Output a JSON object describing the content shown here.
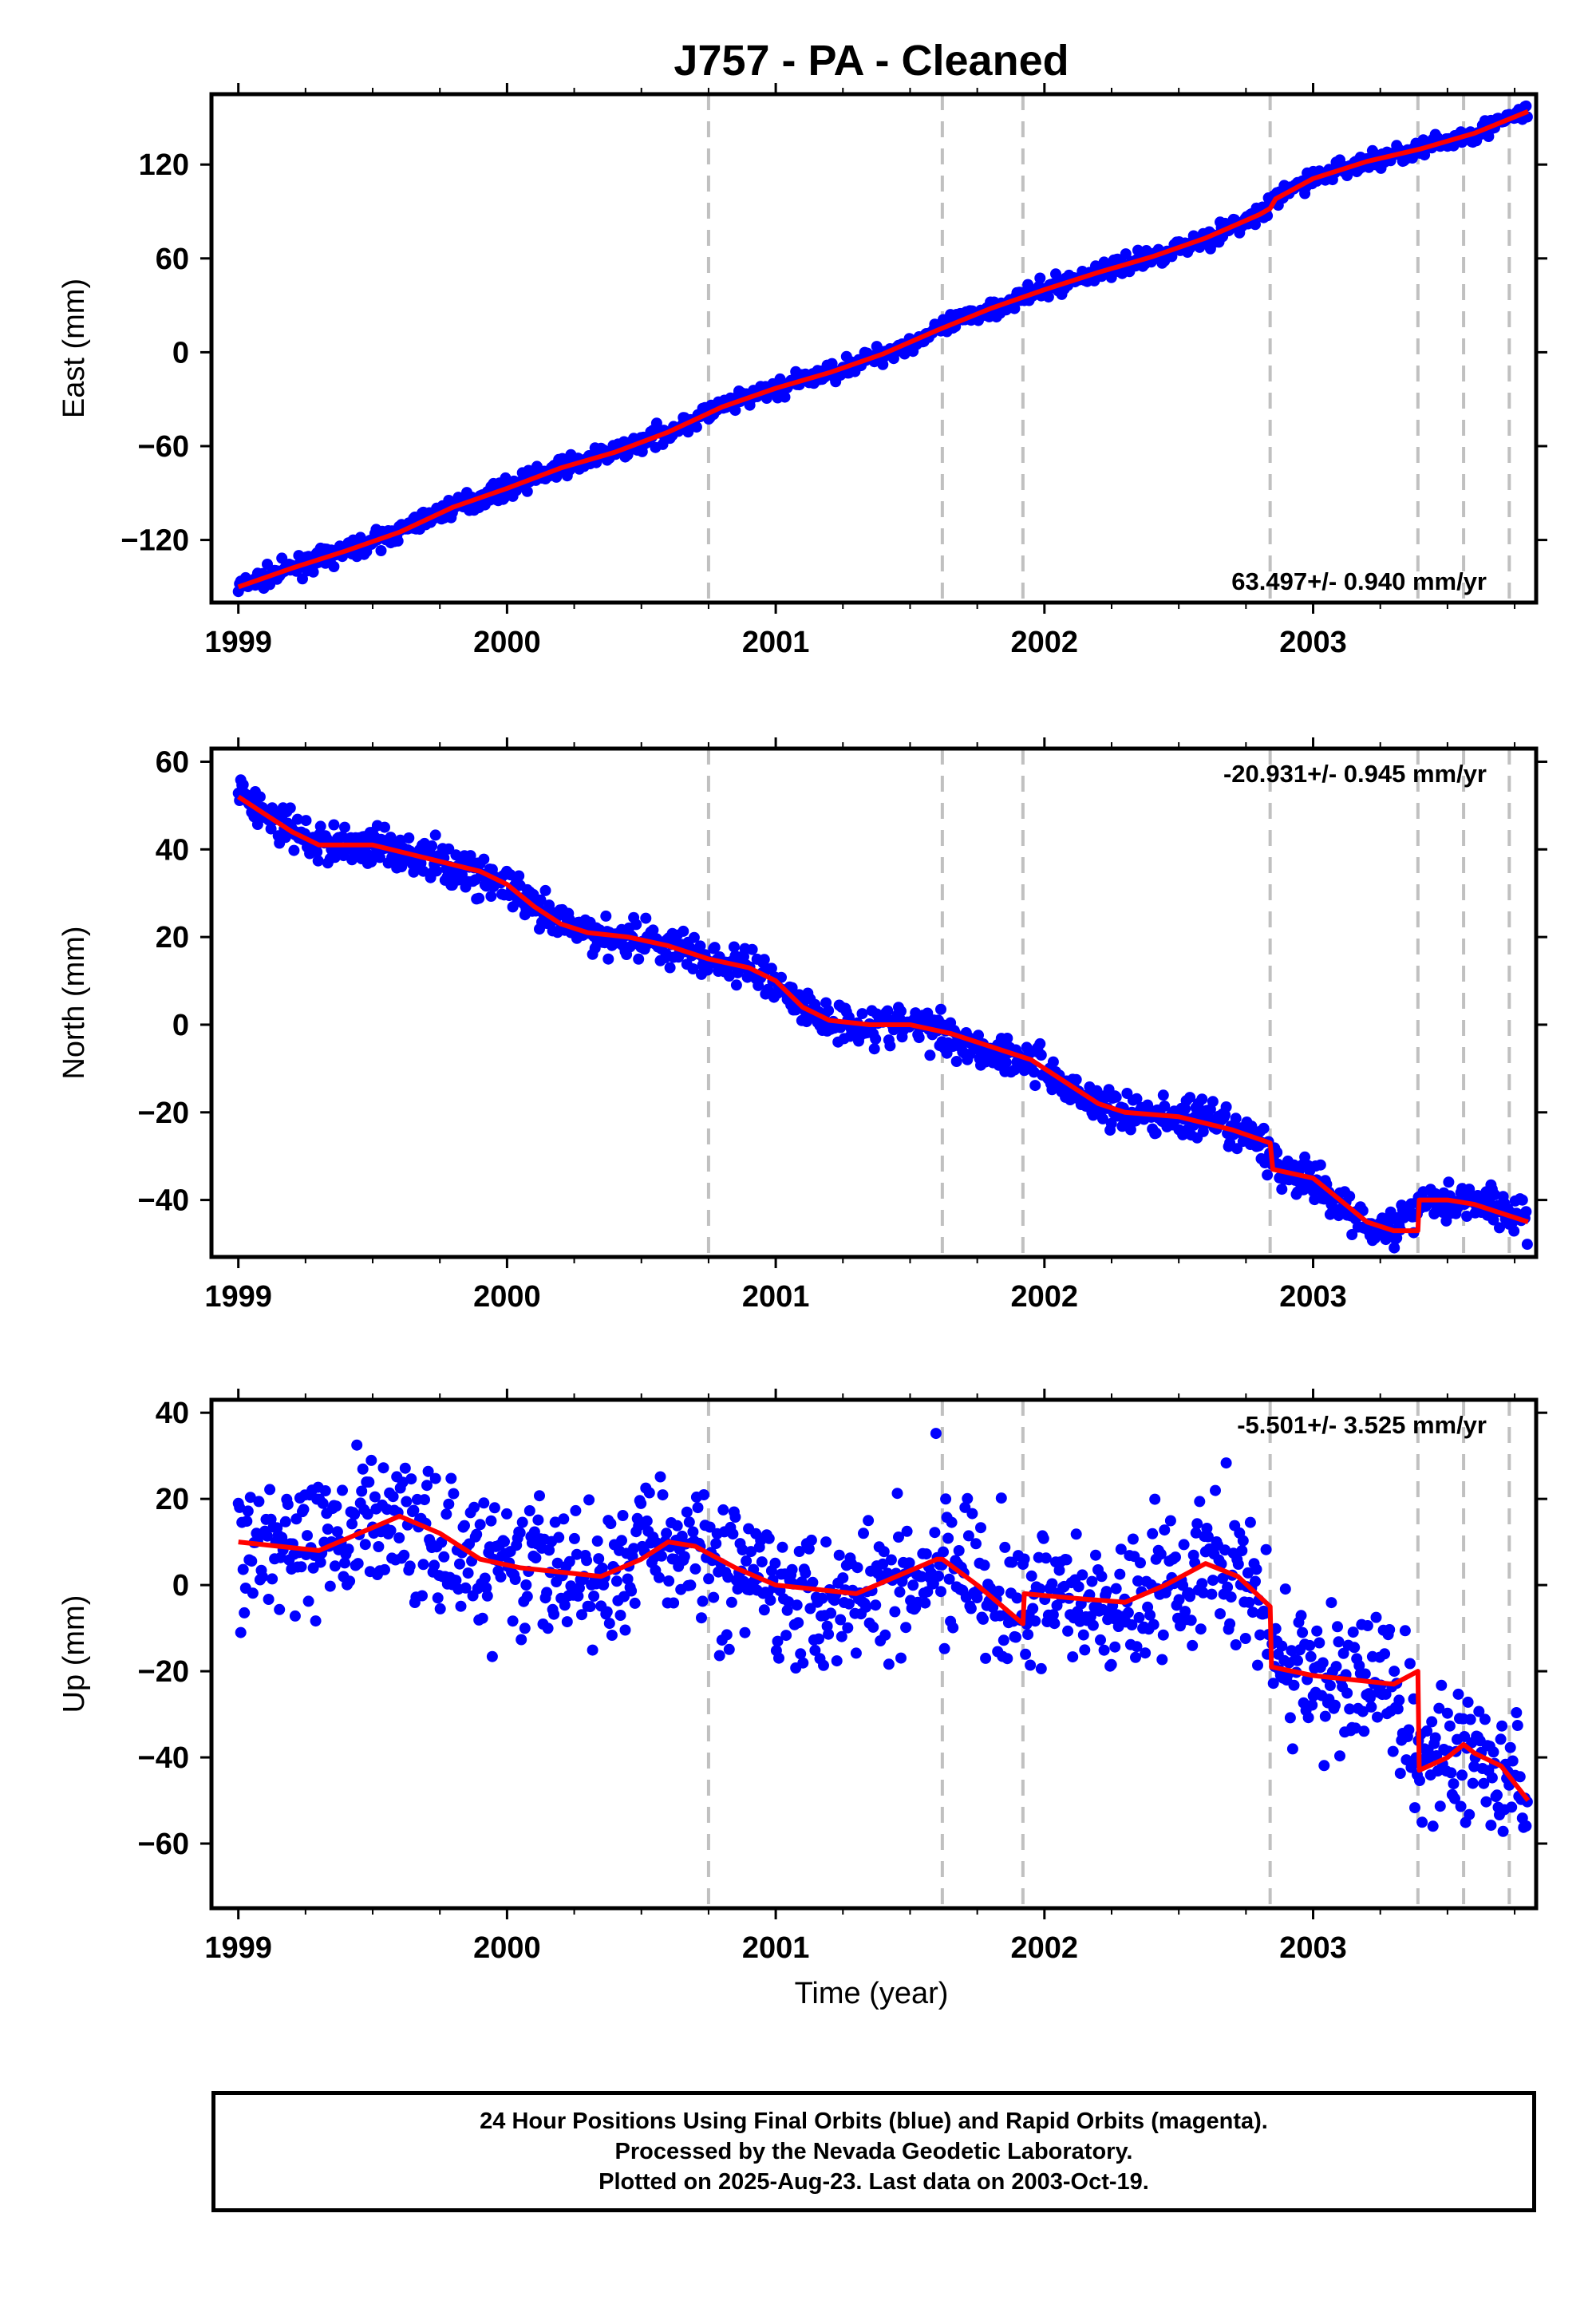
{
  "title": "J757  - PA - Cleaned",
  "xlabel": "Time (year)",
  "caption": [
    "24 Hour Positions Using Final Orbits (blue) and Rapid Orbits (magenta).",
    "Processed by the Nevada Geodetic Laboratory.",
    "Plotted on 2025-Aug-23. Last data on 2003-Oct-19."
  ],
  "colors": {
    "points": "#0000ff",
    "model": "#ff0000",
    "steps": "#c0c0c0",
    "axes": "#000000"
  },
  "chart_data": [
    {
      "type": "scatter",
      "ylabel": "East (mm)",
      "rate_label": "63.497+/- 0.940 mm/yr",
      "rate_position": "bottom-right",
      "xlim": [
        1998.9,
        2003.83
      ],
      "ylim": [
        -160,
        165
      ],
      "xticks": [
        1999,
        2000,
        2001,
        2002,
        2003
      ],
      "yticks": [
        -120,
        -60,
        0,
        60,
        120
      ],
      "step_dates": [
        2000.75,
        2001.62,
        2001.92,
        2002.84,
        2003.39,
        2003.56,
        2003.73
      ],
      "model": {
        "x": [
          1999.0,
          1999.2,
          1999.4,
          1999.6,
          1999.8,
          2000.0,
          2000.2,
          2000.4,
          2000.6,
          2000.8,
          2001.0,
          2001.2,
          2001.4,
          2001.6,
          2001.8,
          2002.0,
          2002.2,
          2002.4,
          2002.6,
          2002.8,
          2002.84,
          2002.86,
          2003.0,
          2003.2,
          2003.4,
          2003.6,
          2003.8
        ],
        "y": [
          -150,
          -138,
          -127,
          -115,
          -99,
          -87,
          -74,
          -64,
          -51,
          -35,
          -23,
          -13,
          -1,
          14,
          28,
          40,
          51,
          61,
          73,
          88,
          92,
          98,
          111,
          122,
          130,
          140,
          154
        ]
      },
      "points": {
        "x": [
          1999.0,
          1999.1,
          1999.2,
          1999.3,
          1999.4,
          1999.5,
          1999.6,
          1999.7,
          1999.8,
          1999.9,
          2000.0,
          2000.1,
          2000.2,
          2000.3,
          2000.4,
          2000.5,
          2000.6,
          2000.7,
          2000.8,
          2000.9,
          2001.0,
          2001.1,
          2001.2,
          2001.3,
          2001.4,
          2001.5,
          2001.6,
          2001.7,
          2001.8,
          2001.9,
          2002.0,
          2002.1,
          2002.2,
          2002.3,
          2002.4,
          2002.5,
          2002.6,
          2002.7,
          2002.8,
          2002.9,
          2003.0,
          2003.1,
          2003.2,
          2003.3,
          2003.4,
          2003.5,
          2003.6,
          2003.7,
          2003.8
        ],
        "y": [
          -150,
          -144,
          -138,
          -133,
          -127,
          -121,
          -115,
          -106,
          -99,
          -93,
          -87,
          -80,
          -74,
          -69,
          -64,
          -57,
          -51,
          -43,
          -35,
          -29,
          -23,
          -18,
          -13,
          -7,
          -1,
          6,
          14,
          21,
          28,
          34,
          40,
          46,
          51,
          56,
          61,
          67,
          73,
          80,
          88,
          103,
          111,
          117,
          122,
          126,
          130,
          135,
          140,
          147,
          154
        ]
      }
    },
    {
      "type": "scatter",
      "ylabel": "North (mm)",
      "rate_label": "-20.931+/- 0.945 mm/yr",
      "rate_position": "top-right",
      "xlim": [
        1998.9,
        2003.83
      ],
      "ylim": [
        -53,
        63
      ],
      "xticks": [
        1999,
        2000,
        2001,
        2002,
        2003
      ],
      "yticks": [
        -40,
        -20,
        0,
        20,
        40,
        60
      ],
      "step_dates": [
        2000.75,
        2001.62,
        2001.92,
        2002.84,
        2003.39,
        2003.56,
        2003.73
      ],
      "model": {
        "x": [
          1999.0,
          1999.1,
          1999.2,
          1999.3,
          1999.5,
          1999.7,
          1999.9,
          2000.0,
          2000.1,
          2000.2,
          2000.3,
          2000.45,
          2000.6,
          2000.75,
          2000.9,
          2001.0,
          2001.1,
          2001.2,
          2001.35,
          2001.5,
          2001.65,
          2001.8,
          2001.95,
          2002.1,
          2002.2,
          2002.3,
          2002.5,
          2002.7,
          2002.84,
          2002.85,
          2003.0,
          2003.1,
          2003.2,
          2003.3,
          2003.39,
          2003.395,
          2003.5,
          2003.6,
          2003.7,
          2003.8
        ],
        "y": [
          52,
          48,
          44,
          41,
          41,
          38,
          35,
          32,
          27,
          23,
          21,
          20,
          18,
          15,
          13,
          10,
          4,
          1,
          0,
          0,
          -2,
          -5,
          -8,
          -14,
          -18,
          -20,
          -21,
          -24,
          -27,
          -33,
          -35,
          -40,
          -45,
          -47,
          -47,
          -40,
          -40,
          -41,
          -43,
          -45
        ]
      },
      "points": {
        "x": [
          1999.0,
          1999.1,
          1999.2,
          1999.3,
          1999.4,
          1999.5,
          1999.6,
          1999.7,
          1999.8,
          1999.9,
          2000.0,
          2000.1,
          2000.2,
          2000.3,
          2000.4,
          2000.5,
          2000.6,
          2000.7,
          2000.8,
          2000.9,
          2001.0,
          2001.1,
          2001.2,
          2001.3,
          2001.4,
          2001.5,
          2001.6,
          2001.7,
          2001.8,
          2001.9,
          2002.0,
          2002.1,
          2002.2,
          2002.3,
          2002.4,
          2002.5,
          2002.6,
          2002.7,
          2002.8,
          2002.9,
          2003.0,
          2003.1,
          2003.2,
          2003.3,
          2003.4,
          2003.5,
          2003.6,
          2003.7,
          2003.8
        ],
        "y": [
          53,
          48,
          44,
          41,
          41,
          41,
          40,
          38,
          36,
          34,
          32,
          26,
          23,
          21,
          20,
          20,
          18,
          16,
          14,
          13,
          10,
          4,
          1,
          0,
          0,
          0,
          -1,
          -4,
          -6,
          -7,
          -10,
          -15,
          -18,
          -20,
          -21,
          -21,
          -22,
          -24,
          -27,
          -34,
          -36,
          -41,
          -45,
          -47,
          -40,
          -40,
          -40,
          -42,
          -45
        ]
      }
    },
    {
      "type": "scatter",
      "ylabel": "Up (mm)",
      "rate_label": "-5.501+/- 3.525 mm/yr",
      "rate_position": "top-right",
      "xlim": [
        1998.9,
        2003.83
      ],
      "ylim": [
        -75,
        43
      ],
      "xticks": [
        1999,
        2000,
        2001,
        2002,
        2003
      ],
      "yticks": [
        -60,
        -40,
        -20,
        0,
        20,
        40
      ],
      "step_dates": [
        2000.75,
        2001.62,
        2001.92,
        2002.84,
        2003.39,
        2003.56,
        2003.73
      ],
      "model": {
        "x": [
          1999.0,
          1999.15,
          1999.3,
          1999.45,
          1999.6,
          1999.75,
          1999.9,
          2000.05,
          2000.2,
          2000.35,
          2000.5,
          2000.6,
          2000.7,
          2000.85,
          2001.0,
          2001.15,
          2001.3,
          2001.45,
          2001.6,
          2001.62,
          2001.75,
          2001.92,
          2001.925,
          2002.1,
          2002.3,
          2002.45,
          2002.6,
          2002.72,
          2002.84,
          2002.845,
          2003.0,
          2003.15,
          2003.3,
          2003.39,
          2003.395,
          2003.5,
          2003.56,
          2003.6,
          2003.7,
          2003.8
        ],
        "y": [
          10,
          9,
          8,
          12,
          16,
          12,
          6,
          4,
          3,
          2,
          6,
          10,
          9,
          4,
          0,
          -1,
          -2,
          2,
          6,
          6,
          0,
          -9,
          -2,
          -3,
          -4,
          0,
          5,
          2,
          -5,
          -19,
          -21,
          -22,
          -23,
          -20,
          -43,
          -40,
          -37,
          -39,
          -42,
          -50
        ]
      },
      "points": {
        "x": [
          1999.0,
          1999.1,
          1999.2,
          1999.3,
          1999.4,
          1999.5,
          1999.6,
          1999.7,
          1999.8,
          1999.9,
          2000.0,
          2000.1,
          2000.2,
          2000.3,
          2000.4,
          2000.5,
          2000.6,
          2000.7,
          2000.8,
          2000.9,
          2001.0,
          2001.1,
          2001.2,
          2001.3,
          2001.4,
          2001.5,
          2001.6,
          2001.7,
          2001.8,
          2001.9,
          2002.0,
          2002.1,
          2002.2,
          2002.3,
          2002.4,
          2002.5,
          2002.6,
          2002.7,
          2002.8,
          2002.9,
          2003.0,
          2003.1,
          2003.2,
          2003.3,
          2003.4,
          2003.5,
          2003.6,
          2003.7,
          2003.8
        ],
        "y": [
          10,
          9,
          8,
          9,
          13,
          16,
          15,
          12,
          7,
          5,
          4,
          3,
          3,
          2,
          4,
          8,
          10,
          9,
          5,
          2,
          0,
          -1,
          -2,
          -1,
          2,
          5,
          6,
          1,
          -4,
          -8,
          -2,
          -3,
          -4,
          -3,
          0,
          3,
          5,
          2,
          -4,
          -20,
          -21,
          -22,
          -23,
          -22,
          -43,
          -40,
          -38,
          -41,
          -50
        ]
      }
    }
  ]
}
